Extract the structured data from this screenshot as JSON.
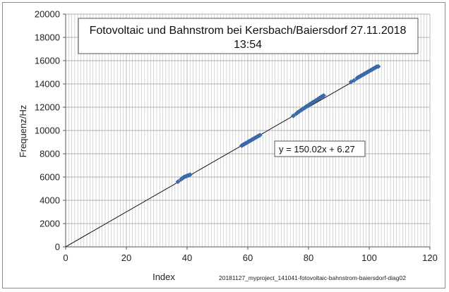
{
  "chart_data": {
    "type": "scatter",
    "title_line1": "Fotovoltaic und Bahnstrom bei Kersbach/Baiersdorf  27.11.2018",
    "title_line2": "13:54",
    "xlabel": "Index",
    "ylabel": "Frequenz/Hz",
    "xlim": [
      0,
      120
    ],
    "ylim": [
      0,
      20000
    ],
    "x_ticks": [
      0,
      20,
      40,
      60,
      80,
      100,
      120
    ],
    "y_ticks": [
      0,
      2000,
      4000,
      6000,
      8000,
      10000,
      12000,
      14000,
      16000,
      18000,
      20000
    ],
    "grid": "vertical minor lines every 1, horizontal every 2000",
    "series": [
      {
        "color": "#3b6fb0",
        "x": [
          37,
          38,
          38.5,
          39,
          39.5,
          40,
          40.5,
          41,
          58,
          58.5,
          59,
          59.5,
          60,
          60.5,
          61,
          61.5,
          62,
          62.5,
          63,
          63.5,
          64,
          75,
          76,
          76.5,
          77,
          77.5,
          78,
          78.5,
          79,
          79.5,
          80,
          80.5,
          81,
          81.5,
          82,
          82.5,
          83,
          83.5,
          84,
          84.5,
          85,
          94,
          95,
          96,
          96.5,
          97,
          97.5,
          98,
          98.5,
          99,
          99.5,
          100,
          100.5,
          101,
          101.5,
          102,
          102.5,
          103
        ],
        "y": [
          5600,
          5800,
          5900,
          6000,
          6050,
          6100,
          6150,
          6200,
          8700,
          8780,
          8850,
          8930,
          9000,
          9080,
          9150,
          9230,
          9300,
          9380,
          9450,
          9530,
          9600,
          11260,
          11450,
          11560,
          11650,
          11740,
          11820,
          11910,
          12000,
          12090,
          12170,
          12260,
          12350,
          12430,
          12500,
          12590,
          12670,
          12760,
          12850,
          12930,
          13000,
          14170,
          14300,
          14500,
          14580,
          14650,
          14730,
          14800,
          14880,
          14950,
          15030,
          15100,
          15180,
          15250,
          15330,
          15400,
          15480,
          15500
        ]
      }
    ],
    "trendline": {
      "slope": 150.02,
      "intercept": 6.27,
      "label": "y = 150.02x + 6.27"
    },
    "footnote": "20181127_myproject_141041-fotovoltaic-bahnstrom-baiersdorf-diag02"
  }
}
